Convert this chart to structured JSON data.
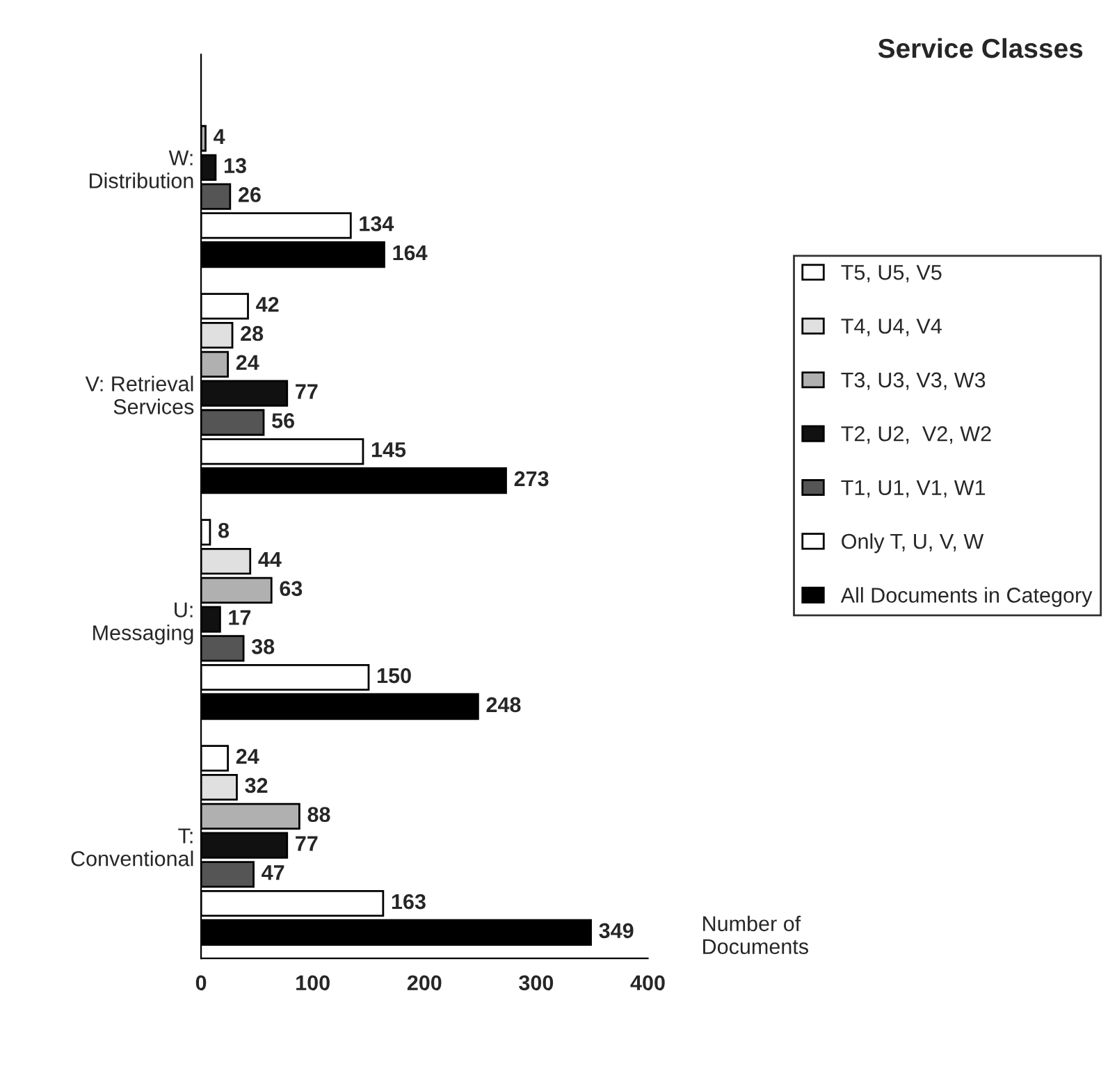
{
  "chart_data": {
    "type": "bar",
    "orientation": "horizontal",
    "title": "Service Classes",
    "xlabel": "Number of\nDocuments",
    "categories": [
      "W:\nDistribution",
      "V: Retrieval\nServices",
      "U:\nMessaging",
      "T:\nConventional"
    ],
    "series": [
      {
        "name": "T5, U5, V5",
        "color": "#ffffff",
        "values": [
          null,
          42,
          8,
          24
        ]
      },
      {
        "name": "T4, U4, V4",
        "color": "#e0e0e0",
        "values": [
          null,
          28,
          44,
          32
        ]
      },
      {
        "name": "T3, U3, V3, W3",
        "color": "#b0b0b0",
        "values": [
          4,
          24,
          63,
          88
        ]
      },
      {
        "name": "T2, U2,  V2, W2",
        "color": "#111111",
        "values": [
          13,
          77,
          17,
          77
        ]
      },
      {
        "name": "T1, U1, V1, W1",
        "color": "#555555",
        "values": [
          26,
          56,
          38,
          47
        ]
      },
      {
        "name": "Only T, U, V, W",
        "color": "#ffffff",
        "values": [
          134,
          145,
          150,
          163
        ]
      },
      {
        "name": "All Documents in Category",
        "color": "#000000",
        "values": [
          164,
          273,
          248,
          349
        ]
      }
    ],
    "xlim": [
      0,
      400
    ],
    "xticks": [
      0,
      100,
      200,
      300,
      400
    ],
    "data_labels": true,
    "grid": false,
    "legend": "right"
  }
}
